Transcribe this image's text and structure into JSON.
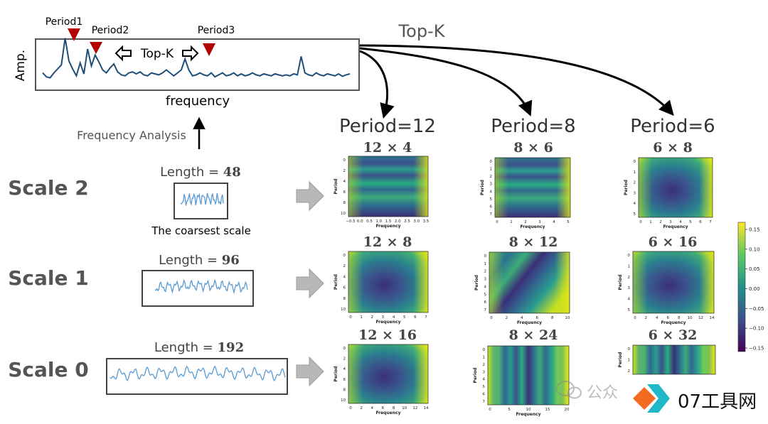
{
  "spectrum": {
    "y_label": "Amp.",
    "x_label": "frequency",
    "peak_labels": [
      "Period1",
      "Period2",
      "Period3"
    ],
    "topk_inner": "Top-K",
    "values": [
      0.22,
      0.14,
      0.12,
      0.22,
      0.3,
      0.38,
      0.92,
      0.46,
      0.3,
      0.16,
      0.42,
      0.2,
      0.7,
      0.36,
      0.58,
      0.44,
      0.28,
      0.22,
      0.32,
      0.4,
      0.24,
      0.18,
      0.16,
      0.22,
      0.24,
      0.2,
      0.24,
      0.18,
      0.16,
      0.22,
      0.2,
      0.18,
      0.22,
      0.28,
      0.22,
      0.16,
      0.22,
      0.28,
      0.5,
      0.28,
      0.16,
      0.18,
      0.22,
      0.18,
      0.16,
      0.22,
      0.14,
      0.18,
      0.22,
      0.16,
      0.18,
      0.22,
      0.16,
      0.2,
      0.16,
      0.18,
      0.22,
      0.18,
      0.16,
      0.2,
      0.18,
      0.16,
      0.2,
      0.18,
      0.16,
      0.18,
      0.16,
      0.2,
      0.18,
      0.55,
      0.22,
      0.18,
      0.16,
      0.22,
      0.18,
      0.16,
      0.2,
      0.18,
      0.16,
      0.2,
      0.15,
      0.18,
      0.2
    ]
  },
  "topk_outer": "Top-K",
  "frequency_analysis": "Frequency Analysis",
  "periods": [
    "Period=12",
    "Period=8",
    "Period=6"
  ],
  "scales": [
    {
      "name": "Scale 2",
      "length_text": "Length = ",
      "length_value": "48",
      "note": "The coarsest scale"
    },
    {
      "name": "Scale 1",
      "length_text": "Length = ",
      "length_value": "96",
      "note": ""
    },
    {
      "name": "Scale 0",
      "length_text": "Length = ",
      "length_value": "192",
      "note": ""
    }
  ],
  "grid": [
    [
      {
        "title": "12 × 4",
        "xticks": [
          "−0.5",
          "0.0",
          "0.5",
          "1.0",
          "1.5",
          "2.0",
          "2.5",
          "3.0",
          "3.5"
        ],
        "yticks": [
          "0",
          "2",
          "4",
          "6",
          "8",
          "10"
        ],
        "ylabel": "Period",
        "xlabel": "Frequency",
        "pattern": "bands"
      },
      {
        "title": "8 × 6",
        "xticks": [
          "0",
          "1",
          "2",
          "3",
          "4",
          "5"
        ],
        "yticks": [
          "0",
          "1",
          "2",
          "3",
          "4",
          "5",
          "6",
          "7"
        ],
        "ylabel": "Period",
        "xlabel": "Frequency",
        "pattern": "bands"
      },
      {
        "title": "6 × 8",
        "xticks": [
          "0",
          "1",
          "2",
          "3",
          "4",
          "5",
          "6",
          "7"
        ],
        "yticks": [
          "0",
          "1",
          "2",
          "3",
          "4",
          "5"
        ],
        "ylabel": "Period",
        "xlabel": "Frequency",
        "pattern": "blob"
      }
    ],
    [
      {
        "title": "12 × 8",
        "xticks": [
          "0",
          "1",
          "2",
          "3",
          "4",
          "5",
          "6",
          "7"
        ],
        "yticks": [
          "0",
          "2",
          "4",
          "6",
          "8",
          "10"
        ],
        "ylabel": "Period",
        "xlabel": "Frequency",
        "pattern": "blob"
      },
      {
        "title": "8 × 12",
        "xticks": [
          "0",
          "2",
          "4",
          "6",
          "8",
          "10"
        ],
        "yticks": [
          "0",
          "1",
          "2",
          "3",
          "4",
          "5",
          "6",
          "7"
        ],
        "ylabel": "Period",
        "xlabel": "Frequency",
        "pattern": "diagonal"
      },
      {
        "title": "6 × 16",
        "xticks": [
          "0",
          "2",
          "4",
          "6",
          "8",
          "10",
          "12",
          "14"
        ],
        "yticks": [
          "0",
          "1",
          "2",
          "3",
          "4",
          "5"
        ],
        "ylabel": "Period",
        "xlabel": "Frequency",
        "pattern": "blob"
      }
    ],
    [
      {
        "title": "12 × 16",
        "xticks": [
          "0",
          "2",
          "4",
          "6",
          "8",
          "10",
          "12",
          "14"
        ],
        "yticks": [
          "0",
          "2",
          "4",
          "6",
          "8",
          "10"
        ],
        "ylabel": "Period",
        "xlabel": "Frequency",
        "pattern": "blob"
      },
      {
        "title": "8 × 24",
        "xticks": [
          "0",
          "5",
          "10",
          "15",
          "20"
        ],
        "yticks": [
          "0",
          "1",
          "2",
          "3",
          "4",
          "5",
          "6",
          "7"
        ],
        "ylabel": "Period",
        "xlabel": "Frequency",
        "pattern": "stripes"
      },
      {
        "title": "6 × 32",
        "xticks": [],
        "yticks": [
          "0",
          "1",
          "2"
        ],
        "ylabel": "Period",
        "xlabel": "",
        "pattern": "stripes"
      }
    ]
  ],
  "colorbar": {
    "ticks": [
      "0.15",
      "0.10",
      "0.05",
      "0.00",
      "−0.05",
      "−0.10",
      "−0.15"
    ]
  },
  "watermark": {
    "left_text": "公众",
    "right_text": "07工具网"
  },
  "colors": {
    "line": "#1f4e79",
    "marker": "#b30000",
    "label_gray": "#555555",
    "arrow_gray": "#b8b8b8",
    "wave": "#5a9bd4"
  }
}
